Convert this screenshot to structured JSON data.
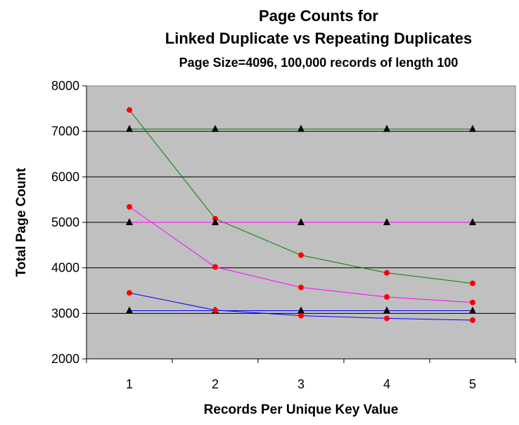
{
  "chart_data": {
    "type": "line",
    "title": "Page Counts for",
    "title_line2": "Linked Duplicate vs Repeating Duplicates",
    "subtitle": "Page Size=4096, 100,000 records of length 100",
    "xlabel": "Records Per Unique Key Value",
    "ylabel": "Total Page Count",
    "categories": [
      "1",
      "2",
      "3",
      "4",
      "5"
    ],
    "ylim": [
      2000,
      8000
    ],
    "yticks": [
      "2000",
      "3000",
      "4000",
      "5000",
      "6000",
      "7000",
      "8000"
    ],
    "grid": true,
    "legend": "none",
    "plot_background": "#C0C0C0",
    "series": [
      {
        "color": "#008000",
        "marker": "triangle",
        "marker_color": "#000000",
        "values": [
          7050,
          7050,
          7050,
          7050,
          7050
        ]
      },
      {
        "color": "#008000",
        "marker": "circle",
        "marker_color": "#FF0000",
        "values": [
          7470,
          5080,
          4280,
          3890,
          3660
        ]
      },
      {
        "color": "#FF00FF",
        "marker": "triangle",
        "marker_color": "#000000",
        "values": [
          5000,
          5000,
          5000,
          5000,
          5000
        ]
      },
      {
        "color": "#FF00FF",
        "marker": "circle",
        "marker_color": "#FF0000",
        "values": [
          5340,
          4020,
          3570,
          3360,
          3240
        ]
      },
      {
        "color": "#0000FF",
        "marker": "triangle",
        "marker_color": "#000000",
        "values": [
          3060,
          3060,
          3060,
          3060,
          3060
        ]
      },
      {
        "color": "#0000FF",
        "marker": "circle",
        "marker_color": "#FF0000",
        "values": [
          3450,
          3070,
          2950,
          2890,
          2850
        ]
      }
    ]
  }
}
